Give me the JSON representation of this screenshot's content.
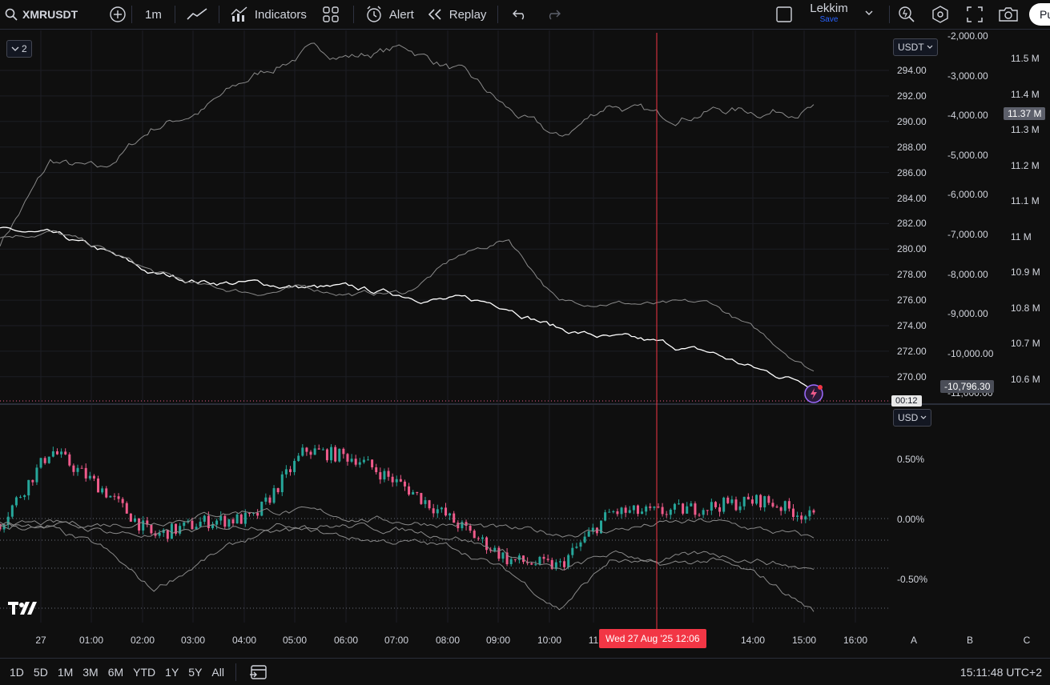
{
  "toolbar": {
    "symbol": "XMRUSDT",
    "interval": "1m",
    "indicators_label": "Indicators",
    "alert_label": "Alert",
    "replay_label": "Replay",
    "layout_name": "Lekkim",
    "layout_save": "Save",
    "publish_label": "Pu"
  },
  "pane_toggle": "2",
  "main_pane": {
    "currency_dropdown": "USDT",
    "price_ticks": [
      "294.00",
      "292.00",
      "290.00",
      "288.00",
      "286.00",
      "284.00",
      "282.00",
      "280.00",
      "278.00",
      "276.00",
      "274.00",
      "272.00",
      "270.00"
    ],
    "second_axis_ticks": [
      "-2,000.00",
      "-3,000.00",
      "-4,000.00",
      "-5,000.00",
      "-6,000.00",
      "-7,000.00",
      "-8,000.00",
      "-9,000.00",
      "-10,000.00",
      "-11,000.00"
    ],
    "third_axis_ticks": [
      "11.5 M",
      "11.4 M",
      "11.3 M",
      "11.2 M",
      "11.1 M",
      "11 M",
      "10.9 M",
      "10.8 M",
      "10.7 M",
      "10.6 M"
    ],
    "current_value_badge": "11.37 M",
    "last_value_badge": "-10,796.30",
    "countdown": "00:12"
  },
  "lower_pane": {
    "currency_dropdown": "USD",
    "percent_ticks": [
      "0.50%",
      "0.00%",
      "-0.50%"
    ]
  },
  "time_axis": {
    "labels": [
      "27",
      "01:00",
      "02:00",
      "03:00",
      "04:00",
      "05:00",
      "06:00",
      "07:00",
      "08:00",
      "09:00",
      "10:00",
      "11",
      "14:00",
      "15:00",
      "16:00"
    ],
    "crosshair_label": "Wed 27 Aug '25   12:06",
    "scale_letters": [
      "A",
      "B",
      "C"
    ]
  },
  "bottom_bar": {
    "ranges": [
      "1D",
      "5D",
      "1M",
      "3M",
      "6M",
      "YTD",
      "1Y",
      "5Y",
      "All"
    ],
    "clock": "15:11:48 UTC+2"
  },
  "colors": {
    "background": "#0f0f0f",
    "crosshair": "#f23645",
    "up": "#26a69a",
    "down": "#ef5b8b",
    "line_gray": "#8a8a8a",
    "line_white": "#ffffff"
  },
  "chart_data": [
    {
      "type": "line",
      "title": "",
      "x": [
        "00:00",
        "01:00",
        "02:00",
        "03:00",
        "04:00",
        "05:00",
        "06:00",
        "07:00",
        "08:00",
        "09:00",
        "10:00",
        "11:00",
        "12:00",
        "13:00",
        "14:00",
        "15:00",
        "15:11"
      ],
      "series": [
        {
          "values": [
            280.5,
            286.8,
            286.0,
            289.5,
            291.0,
            293.5,
            295.5,
            295.2,
            295.8,
            294.0,
            290.8,
            288.5,
            291.5,
            290.2,
            291.0,
            290.8,
            291.2
          ]
        },
        {
          "values": [
            281.5,
            281.0,
            279.8,
            278.0,
            277.5,
            277.3,
            277.0,
            276.8,
            276.4,
            276.0,
            275.6,
            273.8,
            273.0,
            272.5,
            271.8,
            270.4,
            269.5
          ]
        },
        {
          "values": [
            281.0,
            281.4,
            280.0,
            278.2,
            277.0,
            276.6,
            276.9,
            276.5,
            276.6,
            279.4,
            280.8,
            275.8,
            275.9,
            275.6,
            275.7,
            273.2,
            270.5
          ]
        }
      ],
      "ylim": [
        269,
        296
      ]
    },
    {
      "type": "line",
      "title": "",
      "x": [
        "00:00",
        "01:00",
        "02:00",
        "03:00",
        "04:00",
        "05:00",
        "06:00",
        "07:00",
        "08:00",
        "09:00",
        "10:00",
        "11:00",
        "12:00",
        "13:00",
        "14:00",
        "15:00",
        "15:11"
      ],
      "series": [
        {
          "values": [
            0.0,
            0.62,
            0.3,
            -0.1,
            0.02,
            0.05,
            0.62,
            0.55,
            0.3,
            0.0,
            -0.3,
            -0.35,
            0.1,
            0.1,
            0.15,
            0.2,
            0.05
          ]
        },
        {
          "values": [
            0.0,
            0.0,
            0.0,
            0.02,
            0.08,
            0.12,
            0.1,
            0.05,
            0.02,
            0.0,
            -0.05,
            -0.08,
            -0.05,
            0.0,
            0.02,
            -0.05,
            -0.12
          ]
        },
        {
          "values": [
            0.0,
            -0.05,
            -0.2,
            -0.55,
            -0.3,
            -0.1,
            -0.05,
            -0.12,
            -0.15,
            -0.2,
            -0.4,
            -0.7,
            -0.3,
            -0.35,
            -0.3,
            -0.45,
            -0.72
          ]
        },
        {
          "values": [
            0.0,
            0.0,
            -0.05,
            -0.1,
            -0.05,
            0.0,
            0.0,
            -0.02,
            -0.05,
            -0.1,
            -0.25,
            -0.4,
            -0.25,
            -0.3,
            -0.25,
            -0.3,
            -0.38
          ]
        }
      ],
      "ylim": [
        -0.8,
        0.8
      ]
    }
  ]
}
